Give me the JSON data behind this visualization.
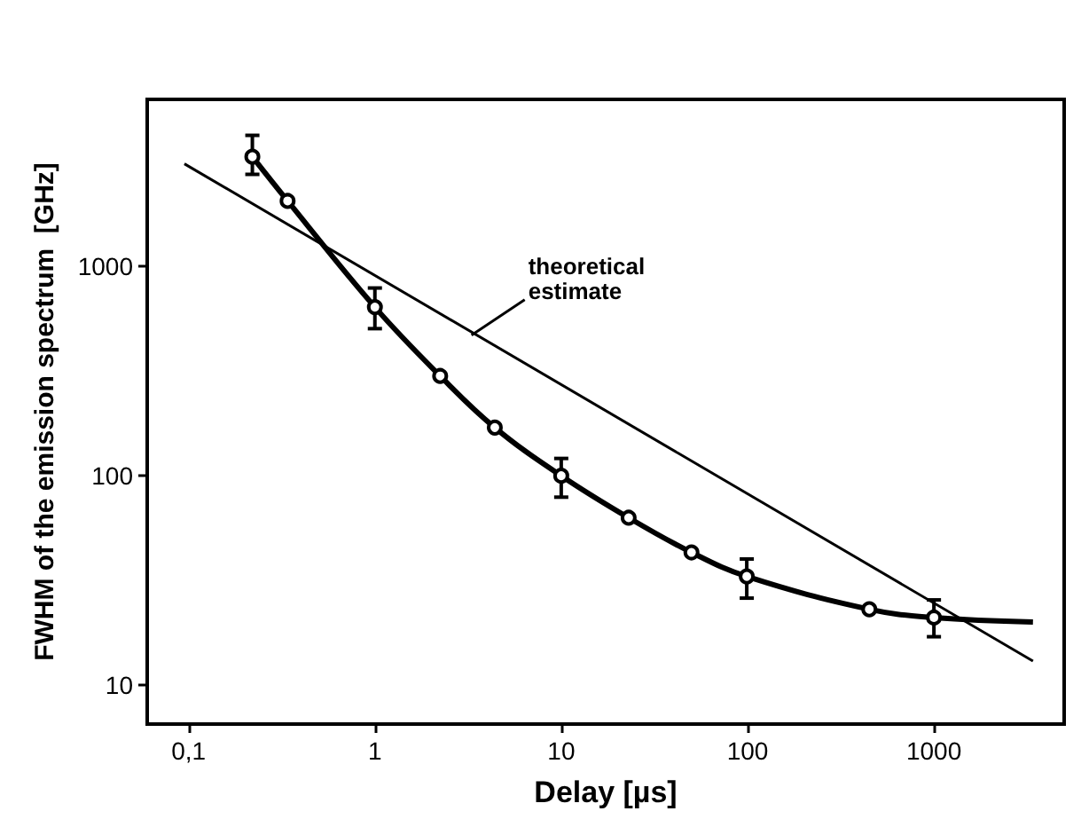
{
  "chart_data": {
    "type": "scatter",
    "xlabel": "Delay [µs]",
    "ylabel": "FWHM of the emission spectrum  [GHz]",
    "log": "xy",
    "grid": false,
    "xlim": [
      0.06,
      5000
    ],
    "ylim": [
      6.5,
      6300
    ],
    "xticks": [
      {
        "value": 0.1,
        "label": "0,1"
      },
      1,
      10,
      100,
      1000
    ],
    "yticks": [
      10,
      100,
      1000
    ],
    "annotations": [
      {
        "text": "theoretical\nestimate",
        "x": 3.3,
        "y": 470
      }
    ],
    "series": [
      {
        "color": "#000000",
        "marker": "circle",
        "x": [
          0.22,
          0.34,
          1,
          2.24,
          4.4,
          10,
          23,
          50,
          99,
          450,
          1000
        ],
        "values": [
          3350,
          2060,
          640,
          300,
          170,
          100,
          63,
          43,
          33,
          23,
          21
        ],
        "errors": [
          [
            2760,
            4240
          ],
          null,
          [
            505,
            790
          ],
          null,
          null,
          [
            79,
            121
          ],
          null,
          null,
          [
            26,
            40
          ],
          null,
          [
            17,
            25.5
          ]
        ]
      },
      {
        "type": "line",
        "color": "#000000",
        "marker": "none",
        "x": [
          0.22,
          0.34,
          1,
          2.24,
          4.4,
          10,
          23,
          50,
          99,
          450,
          1000,
          3400
        ],
        "values": [
          3350,
          2060,
          640,
          300,
          170,
          100,
          63,
          43,
          33,
          23,
          21,
          20
        ]
      },
      {
        "type": "line",
        "color": "#000000",
        "marker": "none",
        "x": [
          0.095,
          3400
        ],
        "values": [
          3100,
          13
        ]
      }
    ]
  }
}
